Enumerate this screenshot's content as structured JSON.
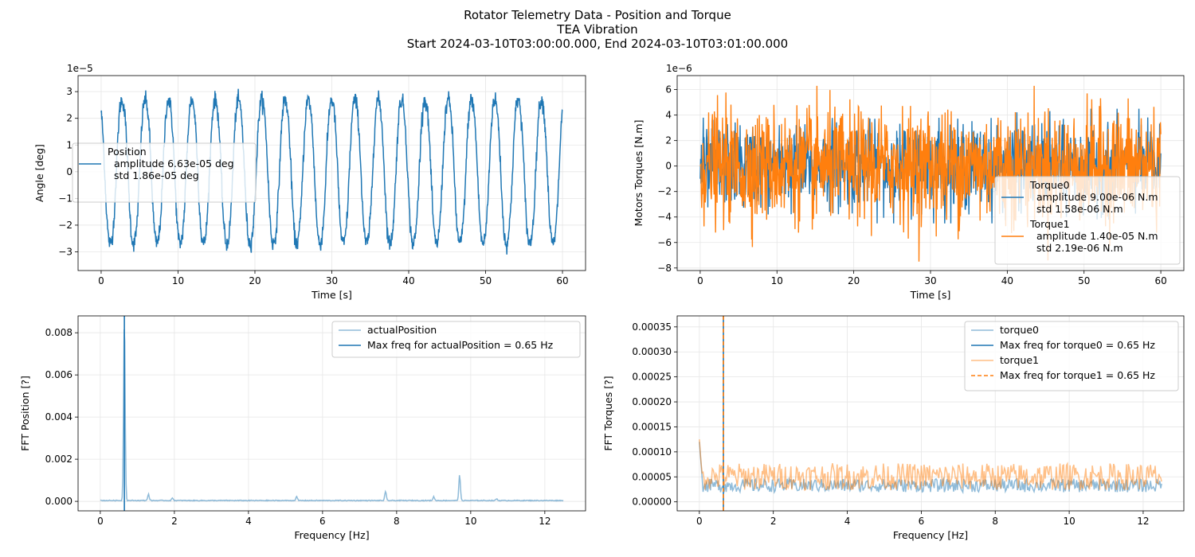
{
  "figure": {
    "title_lines": [
      "Rotator Telemetry Data - Position and Torque",
      "TEA Vibration",
      "Start 2024-03-10T03:00:00.000, End 2024-03-10T03:01:00.000"
    ],
    "colors": {
      "blue": "#1f77b4",
      "orange": "#ff7f0e",
      "grid": "#e6e6e6"
    }
  },
  "chart_data": [
    {
      "id": "position",
      "type": "line",
      "xlabel": "Time [s]",
      "ylabel": "Angle [deg]",
      "offset_text": "1e−5",
      "xlim": [
        -3,
        63
      ],
      "ylim": [
        -3.7,
        3.6
      ],
      "xticks": [
        0,
        10,
        20,
        30,
        40,
        50,
        60
      ],
      "yticks": [
        -3,
        -2,
        -1,
        0,
        1,
        2,
        3
      ],
      "grid": true,
      "legend": {
        "placement": "center-left",
        "entries": [
          {
            "series": "Position",
            "lines": [
              "Position",
              "  amplitude 6.63e-05 deg",
              "  std 1.86e-05 deg"
            ],
            "color": "#1f77b4",
            "style": "solid"
          }
        ]
      },
      "series": [
        {
          "name": "Position",
          "color": "#1f77b4",
          "x_range": [
            0,
            60
          ],
          "frequency_hz": 0.33,
          "amplitude": 2.8,
          "units_scale": "1e-5",
          "noise": 0.25
        }
      ]
    },
    {
      "id": "torque",
      "type": "line",
      "xlabel": "Time [s]",
      "ylabel": "Motors Torques [N.m]",
      "offset_text": "1e−6",
      "xlim": [
        -3,
        63
      ],
      "ylim": [
        -8.2,
        7.1
      ],
      "xticks": [
        0,
        10,
        20,
        30,
        40,
        50,
        60
      ],
      "yticks": [
        -8,
        -6,
        -4,
        -2,
        0,
        2,
        4,
        6
      ],
      "grid": true,
      "legend": {
        "placement": "lower-right",
        "entries": [
          {
            "series": "Torque0",
            "lines": [
              "Torque0",
              "  amplitude 9.00e-06 N.m",
              "  std 1.58e-06 N.m"
            ],
            "color": "#1f77b4",
            "style": "solid"
          },
          {
            "series": "Torque1",
            "lines": [
              "Torque1",
              "  amplitude 1.40e-05 N.m",
              "  std 2.19e-06 N.m"
            ],
            "color": "#ff7f0e",
            "style": "solid"
          }
        ]
      },
      "series": [
        {
          "name": "Torque0",
          "color": "#1f77b4",
          "x_range": [
            0,
            60
          ],
          "min": -4.5,
          "max": 4.5,
          "std": 1.58
        },
        {
          "name": "Torque1",
          "color": "#ff7f0e",
          "x_range": [
            0,
            60
          ],
          "min": -7.5,
          "max": 6.5,
          "std": 2.19
        }
      ]
    },
    {
      "id": "fft_position",
      "type": "line",
      "xlabel": "Frequency [Hz]",
      "ylabel": "FFT Position [?]",
      "xlim": [
        -0.6,
        13.1
      ],
      "ylim": [
        -0.00045,
        0.0088
      ],
      "xticks": [
        0,
        2,
        4,
        6,
        8,
        10,
        12
      ],
      "yticks": [
        0.0,
        0.002,
        0.004,
        0.006,
        0.008
      ],
      "ytick_labels": [
        "0.000",
        "0.002",
        "0.004",
        "0.006",
        "0.008"
      ],
      "grid": true,
      "legend": {
        "placement": "upper-right",
        "entries": [
          {
            "series": "actualPosition",
            "lines": [
              "actualPosition"
            ],
            "color": "#1f77b4",
            "alpha": 0.5,
            "style": "solid"
          },
          {
            "series": "maxfreq",
            "lines": [
              "Max freq for actualPosition = 0.65 Hz"
            ],
            "color": "#1f77b4",
            "style": "solid"
          }
        ]
      },
      "series": [
        {
          "name": "actualPosition",
          "color": "#1f77b4",
          "alpha": 0.5,
          "x_range": [
            0,
            12.5
          ],
          "peaks": [
            [
              0.65,
              0.0086
            ],
            [
              1.3,
              0.0003
            ],
            [
              1.95,
              0.00012
            ],
            [
              5.3,
              0.00018
            ],
            [
              7.7,
              0.00042
            ],
            [
              9.0,
              0.00018
            ],
            [
              9.7,
              0.0012
            ],
            [
              10.7,
              8e-05
            ]
          ],
          "baseline": 4e-05
        }
      ],
      "vlines": [
        {
          "x": 0.65,
          "color": "#1f77b4",
          "style": "solid"
        }
      ]
    },
    {
      "id": "fft_torque",
      "type": "line",
      "xlabel": "Frequency [Hz]",
      "ylabel": "FFT Torques [?]",
      "xlim": [
        -0.6,
        13.1
      ],
      "ylim": [
        -1.8e-05,
        0.000372
      ],
      "xticks": [
        0,
        2,
        4,
        6,
        8,
        10,
        12
      ],
      "yticks": [
        0.0,
        5e-05,
        0.0001,
        0.00015,
        0.0002,
        0.00025,
        0.0003,
        0.00035
      ],
      "ytick_labels": [
        "0.00000",
        "0.00005",
        "0.00010",
        "0.00015",
        "0.00020",
        "0.00025",
        "0.00030",
        "0.00035"
      ],
      "grid": true,
      "legend": {
        "placement": "upper-right",
        "entries": [
          {
            "series": "torque0",
            "lines": [
              "torque0"
            ],
            "color": "#1f77b4",
            "alpha": 0.5,
            "style": "solid"
          },
          {
            "series": "max0",
            "lines": [
              "Max freq for torque0 = 0.65 Hz"
            ],
            "color": "#1f77b4",
            "style": "solid"
          },
          {
            "series": "torque1",
            "lines": [
              "torque1"
            ],
            "color": "#ff7f0e",
            "alpha": 0.5,
            "style": "solid"
          },
          {
            "series": "max1",
            "lines": [
              "Max freq for torque1 = 0.65 Hz"
            ],
            "color": "#ff7f0e",
            "style": "dashed"
          }
        ]
      },
      "series": [
        {
          "name": "torque0",
          "color": "#1f77b4",
          "alpha": 0.5,
          "x_range": [
            0,
            12.5
          ],
          "start": 0.00012,
          "mean": 3e-05,
          "spread": 3e-05
        },
        {
          "name": "torque1",
          "color": "#ff7f0e",
          "alpha": 0.5,
          "x_range": [
            0,
            12.5
          ],
          "start": 0.000125,
          "mean": 4.5e-05,
          "spread": 6e-05
        }
      ],
      "vlines": [
        {
          "x": 0.65,
          "color": "#1f77b4",
          "style": "solid"
        },
        {
          "x": 0.65,
          "color": "#ff7f0e",
          "style": "dashed"
        }
      ]
    }
  ]
}
